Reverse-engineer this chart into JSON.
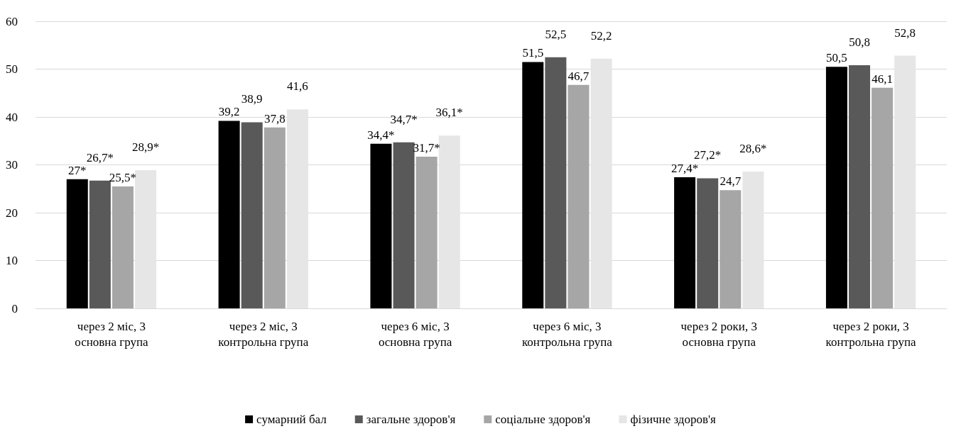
{
  "chart_data": {
    "type": "bar",
    "categories": [
      "через 2 міс, 3\nосновна група",
      "через 2 міс, 3\nконтрольна група",
      "через 6 міс, 3\nосновна група",
      "через 6 міс, 3\nконтрольна група",
      "через 2 роки, 3\nосновна група",
      "через 2 роки, 3\nконтрольна група"
    ],
    "series": [
      {
        "name": "сумарний бал",
        "color": "#000000",
        "values": [
          27,
          39.2,
          34.4,
          51.5,
          27.4,
          50.5
        ],
        "value_labels": [
          "27*",
          "39,2",
          "34,4*",
          "51,5",
          "27,4*",
          "50,5"
        ]
      },
      {
        "name": "загальне здоров'я",
        "color": "#595959",
        "values": [
          26.7,
          38.9,
          34.7,
          52.5,
          27.2,
          50.8
        ],
        "value_labels": [
          "26,7*",
          "38,9",
          "34,7*",
          "52,5",
          "27,2*",
          "50,8"
        ]
      },
      {
        "name": "соціальне здоров'я",
        "color": "#a6a6a6",
        "values": [
          25.5,
          37.8,
          31.7,
          46.7,
          24.7,
          46.1
        ],
        "value_labels": [
          "25,5*",
          "37,8",
          "31,7*",
          "46,7",
          "24,7",
          "46,1"
        ]
      },
      {
        "name": "фізичне здоров'я",
        "color": "#e7e6e6",
        "values": [
          28.9,
          41.6,
          36.1,
          52.2,
          28.6,
          52.8
        ],
        "value_labels": [
          "28,9*",
          "41,6",
          "36,1*",
          "52,2",
          "28,6*",
          "52,8"
        ]
      }
    ],
    "ylim": [
      0,
      60
    ],
    "yticks": [
      0,
      10,
      20,
      30,
      40,
      50,
      60
    ],
    "grid": "y",
    "legend": "bottom"
  }
}
